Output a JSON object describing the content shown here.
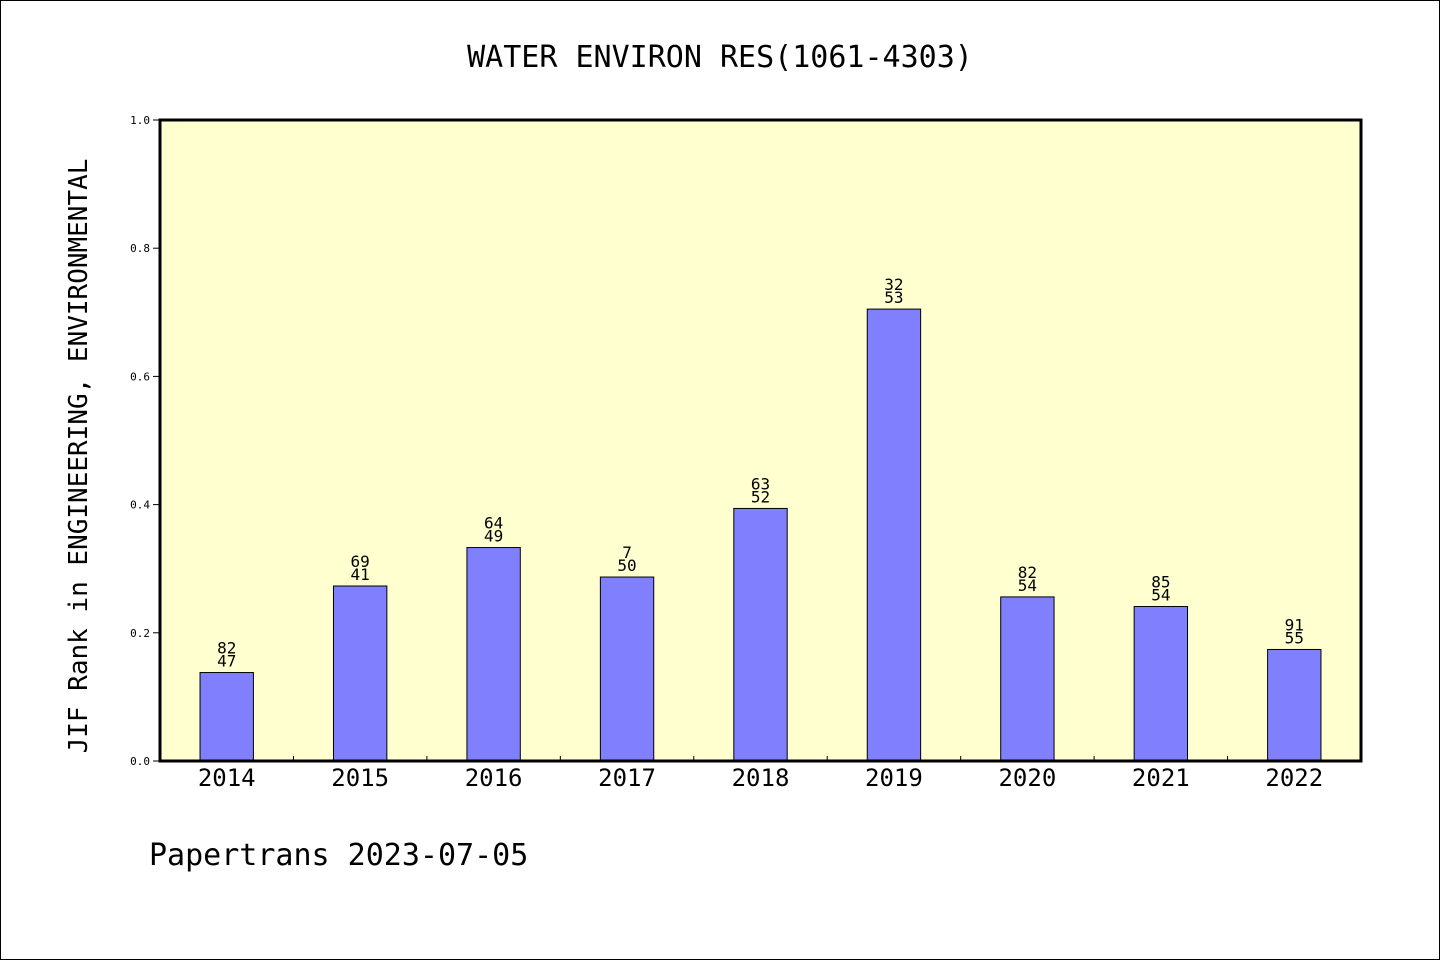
{
  "chart_data": {
    "type": "bar",
    "title": "WATER ENVIRON RES(1061-4303)",
    "xlabel": "",
    "ylabel": "JIF Rank in ENGINEERING, ENVIRONMENTAL",
    "ylim": [
      0,
      1.0
    ],
    "yticks": [
      "0.0",
      "0.2",
      "0.4",
      "0.6",
      "0.8",
      "1.0"
    ],
    "ytick_values": [
      0,
      0.2,
      0.4,
      0.6,
      0.8,
      1.0
    ],
    "categories": [
      "2014",
      "2015",
      "2016",
      "2017",
      "2018",
      "2019",
      "2020",
      "2021",
      "2022"
    ],
    "values": [
      0.138,
      0.273,
      0.333,
      0.287,
      0.394,
      0.705,
      0.256,
      0.241,
      0.174
    ],
    "labels_top": [
      "82",
      "69",
      "64",
      "7",
      "63",
      "32",
      "82",
      "85",
      "91"
    ],
    "labels_bottom": [
      "47",
      "41",
      "49",
      "50",
      "52",
      "53",
      "54",
      "54",
      "55"
    ],
    "grid": false,
    "colors": {
      "bar": "#8080ff",
      "plot_bg": "#ffffd0",
      "bar_edge": "#000000"
    }
  },
  "footer": {
    "text": "Papertrans 2023-07-05"
  }
}
